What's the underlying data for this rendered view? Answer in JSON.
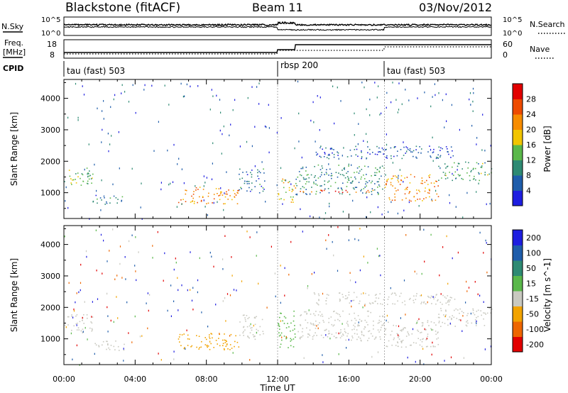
{
  "header": {
    "station": "Blackstone (fitACF)",
    "beam": "Beam 11",
    "date": "03/Nov/2012"
  },
  "status_panels": {
    "nsky_label": "N.Sky",
    "nsearch_label": "N.Search",
    "freq_label_1": "Freq.",
    "freq_label_2": "[MHz]",
    "nave_label": "Nave",
    "cpid_label": "CPID",
    "nsky_left_ticks": [
      "10^5",
      "10^0"
    ],
    "nsearch_right_ticks": [
      "10^5",
      "10^0"
    ],
    "freq_left_ticks": [
      "18",
      "8"
    ],
    "nave_right_ticks": [
      "60",
      "0"
    ],
    "cpid_segments": [
      {
        "label": "tau (fast) 503",
        "start_hour": 0
      },
      {
        "label": "rbsp 200",
        "start_hour": 12
      },
      {
        "label": "tau (fast) 503",
        "start_hour": 18
      }
    ]
  },
  "colors": {
    "power": [
      "#1e1ee0",
      "#1f5dab",
      "#2e8a73",
      "#5ab84a",
      "#f2c500",
      "#f78c00",
      "#ee4b00",
      "#e20000"
    ],
    "velocity": [
      "#1e1ee0",
      "#1f5dab",
      "#2e8a73",
      "#5ab84a",
      "#c9c9c0",
      "#f2a300",
      "#ee6600",
      "#e20000"
    ]
  },
  "chart_data": [
    {
      "type": "heatmap",
      "name": "power",
      "ylabel": "Slant Range [km]",
      "xlabel": "",
      "x_ticks": [
        "00:00",
        "04:00",
        "08:00",
        "12:00",
        "16:00",
        "20:00",
        "00:00"
      ],
      "y_ticks": [
        "1000",
        "2000",
        "3000",
        "4000"
      ],
      "xlim_hours": [
        0,
        24
      ],
      "ylim_km": [
        180,
        4600
      ],
      "colorbar_label": "Power [dB]",
      "colorbar_ticks": [
        "4",
        "8",
        "12",
        "16",
        "20",
        "24",
        "28"
      ],
      "colorbar_range": [
        0,
        32
      ],
      "mode_boundaries_hours": [
        12,
        18
      ],
      "echo_bands": [
        {
          "t0": 0.0,
          "t1": 1.6,
          "r0": 1200,
          "r1": 1800,
          "value": 14
        },
        {
          "t0": 1.6,
          "t1": 3.6,
          "r0": 650,
          "r1": 950,
          "value": 8
        },
        {
          "t0": 6.4,
          "t1": 9.8,
          "r0": 650,
          "r1": 1200,
          "value": 22
        },
        {
          "t0": 9.8,
          "t1": 11.3,
          "r0": 1000,
          "r1": 1800,
          "value": 8
        },
        {
          "t0": 12.0,
          "t1": 13.0,
          "r0": 700,
          "r1": 1500,
          "value": 18
        },
        {
          "t0": 13.0,
          "t1": 18.0,
          "r0": 950,
          "r1": 1900,
          "value": 10
        },
        {
          "t0": 13.0,
          "t1": 18.0,
          "r0": 1000,
          "r1": 1100,
          "value": 26
        },
        {
          "t0": 18.0,
          "t1": 21.0,
          "r0": 750,
          "r1": 1600,
          "value": 22
        },
        {
          "t0": 21.0,
          "t1": 24.0,
          "r0": 1400,
          "r1": 2000,
          "value": 12
        },
        {
          "t0": 14.0,
          "t1": 22.0,
          "r0": 2100,
          "r1": 2500,
          "value": 6
        }
      ]
    },
    {
      "type": "heatmap",
      "name": "velocity",
      "ylabel": "Slant Range [km]",
      "xlabel": "Time UT",
      "x_ticks": [
        "00:00",
        "04:00",
        "08:00",
        "12:00",
        "16:00",
        "20:00",
        "00:00"
      ],
      "y_ticks": [
        "1000",
        "2000",
        "3000",
        "4000"
      ],
      "xlim_hours": [
        0,
        24
      ],
      "ylim_km": [
        180,
        4600
      ],
      "colorbar_label": "Velocity [m s^-1]",
      "colorbar_ticks": [
        "200",
        "100",
        "50",
        "15",
        "-15",
        "-50",
        "-100",
        "-200"
      ],
      "mode_boundaries_hours": [
        12,
        18
      ],
      "echo_bands": [
        {
          "t0": 0.0,
          "t1": 1.6,
          "r0": 1200,
          "r1": 1800,
          "value": 0
        },
        {
          "t0": 1.6,
          "t1": 3.6,
          "r0": 650,
          "r1": 950,
          "value": 0
        },
        {
          "t0": 6.4,
          "t1": 9.8,
          "r0": 650,
          "r1": 1200,
          "value": -40
        },
        {
          "t0": 9.8,
          "t1": 11.3,
          "r0": 1000,
          "r1": 1800,
          "value": 0
        },
        {
          "t0": 12.0,
          "t1": 13.0,
          "r0": 700,
          "r1": 1900,
          "value": 40
        },
        {
          "t0": 13.0,
          "t1": 18.0,
          "r0": 950,
          "r1": 1900,
          "value": 0
        },
        {
          "t0": 18.0,
          "t1": 21.0,
          "r0": 750,
          "r1": 1600,
          "value": 0
        },
        {
          "t0": 21.0,
          "t1": 24.0,
          "r0": 1400,
          "r1": 2000,
          "value": 0
        },
        {
          "t0": 14.0,
          "t1": 22.0,
          "r0": 2100,
          "r1": 2500,
          "value": 0
        }
      ]
    }
  ]
}
